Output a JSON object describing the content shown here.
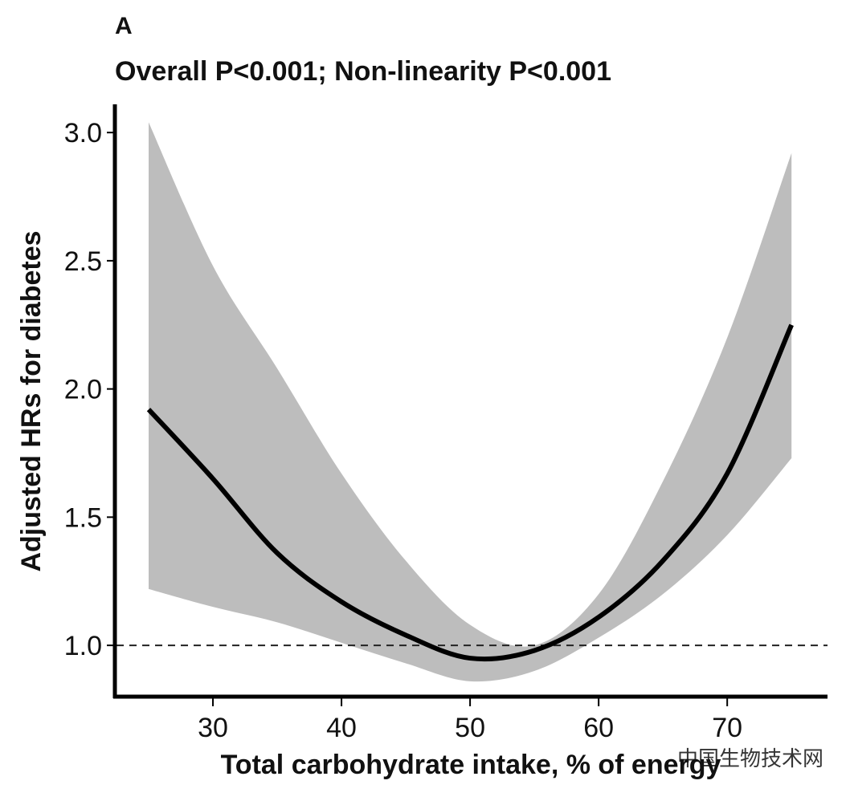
{
  "chart_data": {
    "type": "line_band",
    "panel_label": "A",
    "title": "Overall P<0.001; Non-linearity P<0.001",
    "x_label": "Total carbohydrate intake, % of energy",
    "y_label": "Adjusted HRs for diabetes",
    "watermark": "中国生物技术网",
    "x": [
      25,
      30,
      35,
      40,
      45,
      50,
      55,
      60,
      65,
      70,
      75
    ],
    "values": [
      1.92,
      1.65,
      1.36,
      1.17,
      1.04,
      0.95,
      0.98,
      1.11,
      1.33,
      1.67,
      2.25
    ],
    "upper": [
      3.04,
      2.48,
      2.08,
      1.67,
      1.33,
      1.08,
      1.0,
      1.2,
      1.64,
      2.2,
      2.92
    ],
    "lower": [
      1.22,
      1.15,
      1.09,
      1.01,
      0.93,
      0.86,
      0.9,
      1.03,
      1.2,
      1.43,
      1.73
    ],
    "line_color": "#000000",
    "band_color": "#bdbdbd",
    "reference_line": 1.0,
    "xlim": [
      22.5,
      77.8
    ],
    "ylim": [
      0.8,
      3.11
    ],
    "xticks": [
      30,
      40,
      50,
      60,
      70
    ],
    "yticks": [
      {
        "value": 1,
        "label": "1.0"
      },
      1.5,
      {
        "value": 2,
        "label": "2.0"
      },
      2.5,
      {
        "value": 3,
        "label": "3.0"
      }
    ]
  }
}
